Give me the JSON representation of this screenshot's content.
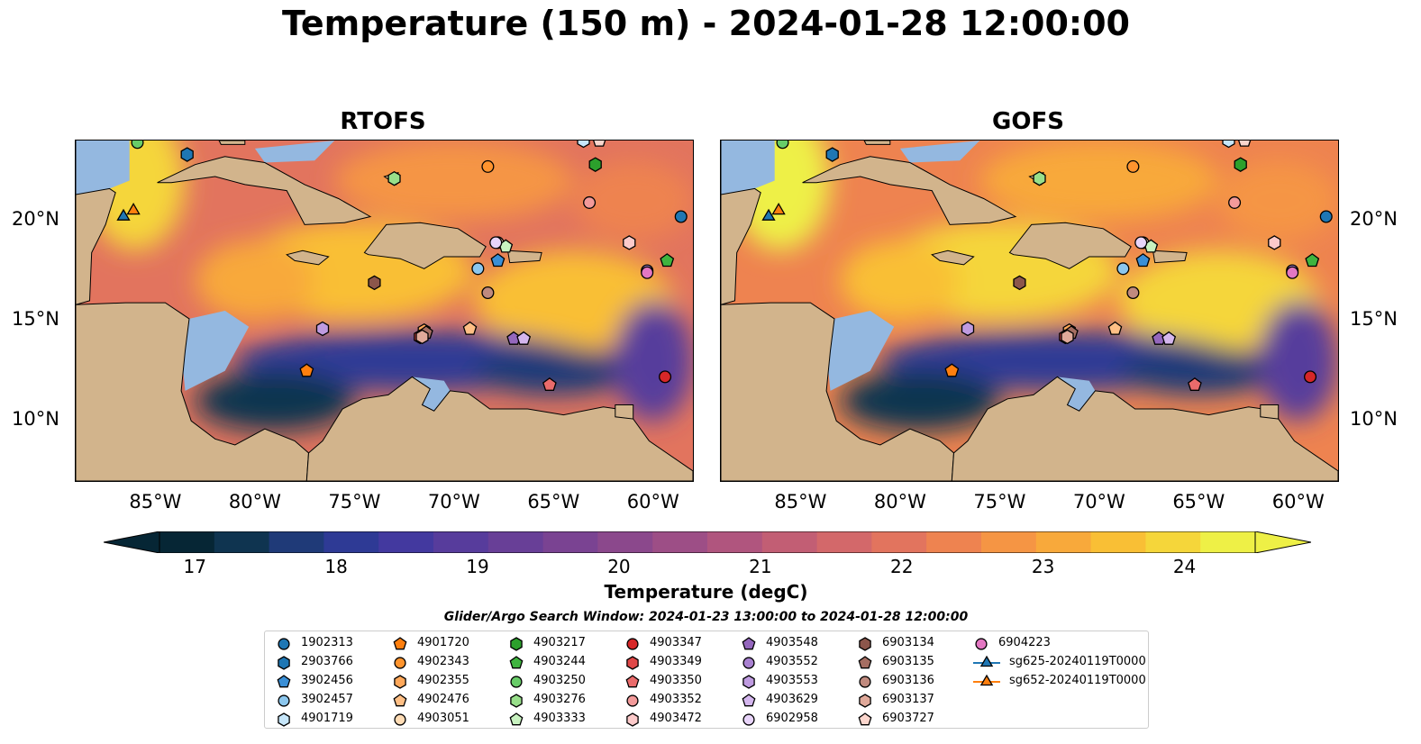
{
  "figure_title": "Temperature (150 m) - 2024-01-28 12:00:00",
  "colors": {
    "land": "#d2b48c",
    "shallow_water": "#94b8e0",
    "colormap": [
      "#062635",
      "#0f3450",
      "#1f3a78",
      "#2e3a95",
      "#43399f",
      "#573c9c",
      "#683f97",
      "#7a4392",
      "#8b488c",
      "#9d4e86",
      "#b0557e",
      "#c25e74",
      "#d3686a",
      "#e2745e",
      "#ee8350",
      "#f59544",
      "#f8a93b",
      "#f9bf35",
      "#f5d63a",
      "#eef046"
    ]
  },
  "maps": [
    {
      "title": "RTOFS"
    },
    {
      "title": "GOFS"
    }
  ],
  "colorbar": {
    "label": "Temperature (degC)",
    "ticks": [
      "17",
      "18",
      "19",
      "20",
      "21",
      "22",
      "23",
      "24"
    ]
  },
  "legend": {
    "title": "Glider/Argo Search Window: 2024-01-23 13:00:00 to 2024-01-28 12:00:00",
    "items": [
      {
        "label": "1902313",
        "color": "#1f77b4",
        "marker": "circle"
      },
      {
        "label": "2903766",
        "color": "#1f77b4",
        "marker": "hexagon"
      },
      {
        "label": "3902456",
        "color": "#3a8fd6",
        "marker": "pentagon"
      },
      {
        "label": "3902457",
        "color": "#8cc7ee",
        "marker": "circle"
      },
      {
        "label": "4901719",
        "color": "#c6e6fa",
        "marker": "hexagon"
      },
      {
        "label": "4901720",
        "color": "#ff7f0e",
        "marker": "pentagon"
      },
      {
        "label": "4902343",
        "color": "#ff942e",
        "marker": "circle"
      },
      {
        "label": "4902355",
        "color": "#ffa85a",
        "marker": "hexagon"
      },
      {
        "label": "4902476",
        "color": "#ffbf85",
        "marker": "pentagon"
      },
      {
        "label": "4903051",
        "color": "#ffdcb5",
        "marker": "circle"
      },
      {
        "label": "4903217",
        "color": "#2ca02c",
        "marker": "hexagon"
      },
      {
        "label": "4903244",
        "color": "#3fb43f",
        "marker": "pentagon"
      },
      {
        "label": "4903250",
        "color": "#68cc68",
        "marker": "circle"
      },
      {
        "label": "4903276",
        "color": "#98df8a",
        "marker": "hexagon"
      },
      {
        "label": "4903333",
        "color": "#c8f2c0",
        "marker": "pentagon"
      },
      {
        "label": "4903347",
        "color": "#d62728",
        "marker": "circle"
      },
      {
        "label": "4903349",
        "color": "#e04848",
        "marker": "hexagon"
      },
      {
        "label": "4903350",
        "color": "#ea6b6b",
        "marker": "pentagon"
      },
      {
        "label": "4903352",
        "color": "#f39a9a",
        "marker": "circle"
      },
      {
        "label": "4903472",
        "color": "#fccaca",
        "marker": "hexagon"
      },
      {
        "label": "4903548",
        "color": "#9467bd",
        "marker": "pentagon"
      },
      {
        "label": "4903552",
        "color": "#a981d1",
        "marker": "circle"
      },
      {
        "label": "4903553",
        "color": "#bf9be0",
        "marker": "hexagon"
      },
      {
        "label": "4903629",
        "color": "#d4b6ee",
        "marker": "pentagon"
      },
      {
        "label": "6902958",
        "color": "#e8d4fa",
        "marker": "circle"
      },
      {
        "label": "6903134",
        "color": "#8c564b",
        "marker": "hexagon"
      },
      {
        "label": "6903135",
        "color": "#a56e62",
        "marker": "pentagon"
      },
      {
        "label": "6903136",
        "color": "#c08a7e",
        "marker": "circle"
      },
      {
        "label": "6903137",
        "color": "#e0a99a",
        "marker": "hexagon"
      },
      {
        "label": "6903727",
        "color": "#fbd6cd",
        "marker": "pentagon"
      },
      {
        "label": "6904223",
        "color": "#e377c2",
        "marker": "circle"
      },
      {
        "label": "sg625-20240119T0000",
        "color": "#1f77b4",
        "marker": "triangle"
      },
      {
        "label": "sg652-20240119T0000",
        "color": "#ff7f0e",
        "marker": "triangle"
      }
    ]
  },
  "chart_data": {
    "type": "heatmap",
    "title": "Temperature (150 m) - 2024-01-28 12:00:00",
    "variable": "Temperature (degC)",
    "depth": "150 m",
    "colorbar_range": [
      16.75,
      24.5
    ],
    "colorbar_ticks": [
      17,
      18,
      19,
      20,
      21,
      22,
      23,
      24
    ],
    "lon_range": [
      -89,
      -58
    ],
    "lat_range": [
      7,
      24
    ],
    "xticks": [
      "85°W",
      "80°W",
      "75°W",
      "70°W",
      "65°W",
      "60°W"
    ],
    "xtick_values": [
      -85,
      -80,
      -75,
      -70,
      -65,
      -60
    ],
    "yticks": [
      "20°N",
      "15°N",
      "10°N"
    ],
    "ytick_values": [
      20,
      15,
      10
    ],
    "panels": [
      "RTOFS",
      "GOFS"
    ],
    "observations": [
      {
        "id": "1902313",
        "lon": -58.6,
        "lat": 20.2
      },
      {
        "id": "2903766",
        "lon": -83.4,
        "lat": 23.3
      },
      {
        "id": "3902456",
        "lon": -67.8,
        "lat": 18.0
      },
      {
        "id": "3902457",
        "lon": -68.8,
        "lat": 17.6
      },
      {
        "id": "4901719",
        "lon": -63.5,
        "lat": 24.0
      },
      {
        "id": "4901720",
        "lon": -77.4,
        "lat": 12.5
      },
      {
        "id": "4902343",
        "lon": -68.3,
        "lat": 22.7
      },
      {
        "id": "4902355",
        "lon": -71.5,
        "lat": 14.5
      },
      {
        "id": "4902476",
        "lon": -69.2,
        "lat": 14.6
      },
      {
        "id": "4903051",
        "lon": -67.8,
        "lat": 18.9
      },
      {
        "id": "4903217",
        "lon": -62.9,
        "lat": 22.8
      },
      {
        "id": "4903244",
        "lon": -59.3,
        "lat": 18.0
      },
      {
        "id": "4903250",
        "lon": -85.9,
        "lat": 23.9
      },
      {
        "id": "4903276",
        "lon": -73.0,
        "lat": 22.1
      },
      {
        "id": "4903333",
        "lon": -67.4,
        "lat": 18.7
      },
      {
        "id": "4903347",
        "lon": -59.4,
        "lat": 12.2
      },
      {
        "id": "4903349",
        "lon": -71.7,
        "lat": 14.2
      },
      {
        "id": "4903350",
        "lon": -65.2,
        "lat": 11.8
      },
      {
        "id": "4903352",
        "lon": -63.2,
        "lat": 20.9
      },
      {
        "id": "4903472",
        "lon": -61.2,
        "lat": 18.9
      },
      {
        "id": "4903548",
        "lon": -67.0,
        "lat": 14.1
      },
      {
        "id": "4903552",
        "lon": -60.3,
        "lat": 17.5
      },
      {
        "id": "4903553",
        "lon": -76.6,
        "lat": 14.6
      },
      {
        "id": "4903629",
        "lon": -66.5,
        "lat": 14.1
      },
      {
        "id": "6902958",
        "lon": -67.9,
        "lat": 18.9
      },
      {
        "id": "6903134",
        "lon": -74.0,
        "lat": 16.9
      },
      {
        "id": "6903135",
        "lon": -71.4,
        "lat": 14.4
      },
      {
        "id": "6903136",
        "lon": -68.3,
        "lat": 16.4
      },
      {
        "id": "6903137",
        "lon": -71.6,
        "lat": 14.2
      },
      {
        "id": "6903727",
        "lon": -62.7,
        "lat": 24.0
      },
      {
        "id": "6904223",
        "lon": -60.3,
        "lat": 17.4
      },
      {
        "id": "sg625-20240119T0000",
        "lon": -86.6,
        "lat": 20.2
      },
      {
        "id": "sg652-20240119T0000",
        "lon": -86.1,
        "lat": 20.5
      }
    ]
  }
}
